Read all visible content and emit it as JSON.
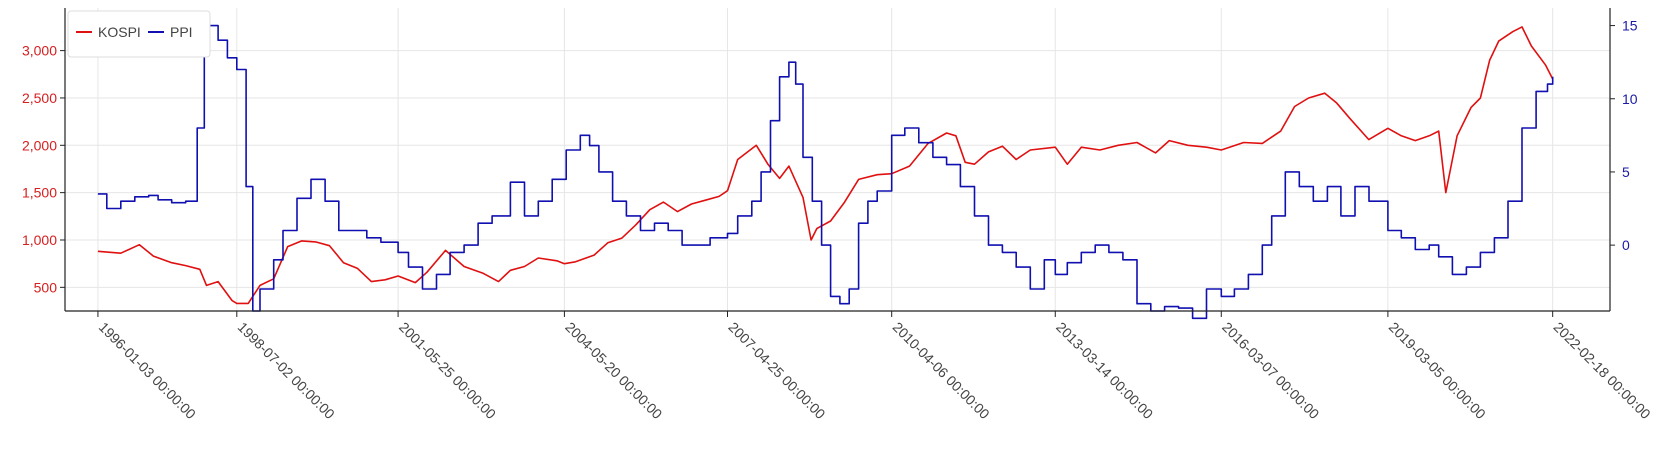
{
  "chart_data": {
    "type": "line",
    "title": "",
    "legend": {
      "placement": "top-left",
      "entries": [
        {
          "name": "KOSPI",
          "color": "#e01010"
        },
        {
          "name": "PPI",
          "color": "#1010b0"
        }
      ]
    },
    "grid": true,
    "x_axis": {
      "type": "date",
      "range": [
        "1995-06-01",
        "2023-03-01"
      ],
      "ticks": [
        {
          "date": "1996-01-03",
          "label": "1996-01-03 00:00:00"
        },
        {
          "date": "1998-07-02",
          "label": "1998-07-02 00:00:00"
        },
        {
          "date": "2001-05-25",
          "label": "2001-05-25 00:00:00"
        },
        {
          "date": "2004-05-20",
          "label": "2004-05-20 00:00:00"
        },
        {
          "date": "2007-04-25",
          "label": "2007-04-25 00:00:00"
        },
        {
          "date": "2010-04-06",
          "label": "2010-04-06 00:00:00"
        },
        {
          "date": "2013-03-14",
          "label": "2013-03-14 00:00:00"
        },
        {
          "date": "2016-03-07",
          "label": "2016-03-07 00:00:00"
        },
        {
          "date": "2019-03-05",
          "label": "2019-03-05 00:00:00"
        },
        {
          "date": "2022-02-18",
          "label": "2022-02-18 00:00:00"
        }
      ]
    },
    "y_left": {
      "color": "#d62020",
      "range": [
        250,
        3450
      ],
      "ticks": [
        {
          "value": 500,
          "label": "500"
        },
        {
          "value": 1000,
          "label": "1,000"
        },
        {
          "value": 1500,
          "label": "1,500"
        },
        {
          "value": 2000,
          "label": "2,000"
        },
        {
          "value": 2500,
          "label": "2,500"
        },
        {
          "value": 3000,
          "label": "3,000"
        }
      ]
    },
    "y_right": {
      "color": "#1a1aa6",
      "range": [
        -4.5,
        16.2
      ],
      "ticks": [
        {
          "value": 0,
          "label": "0"
        },
        {
          "value": 5,
          "label": "5"
        },
        {
          "value": 10,
          "label": "10"
        },
        {
          "value": 15,
          "label": "15"
        }
      ]
    },
    "series": [
      {
        "name": "KOSPI",
        "axis": "left",
        "color": "#e01010",
        "x": [
          "1996-01-03",
          "1996-06-01",
          "1996-10-01",
          "1997-01-01",
          "1997-05-01",
          "1997-08-01",
          "1997-11-01",
          "1997-12-15",
          "1998-03-01",
          "1998-06-01",
          "1998-07-02",
          "1998-09-15",
          "1998-12-01",
          "1999-03-01",
          "1999-06-01",
          "1999-09-01",
          "1999-12-01",
          "2000-03-01",
          "2000-06-01",
          "2000-09-01",
          "2000-12-01",
          "2001-03-01",
          "2001-05-25",
          "2001-09-15",
          "2001-12-01",
          "2002-04-01",
          "2002-08-01",
          "2002-12-01",
          "2003-03-15",
          "2003-06-01",
          "2003-09-01",
          "2003-12-01",
          "2004-04-01",
          "2004-05-20",
          "2004-08-01",
          "2004-12-01",
          "2005-03-01",
          "2005-06-01",
          "2005-09-01",
          "2005-12-01",
          "2006-03-01",
          "2006-06-01",
          "2006-09-01",
          "2006-12-01",
          "2007-03-01",
          "2007-04-25",
          "2007-07-01",
          "2007-10-31",
          "2008-01-15",
          "2008-04-01",
          "2008-06-01",
          "2008-09-01",
          "2008-10-24",
          "2008-12-01",
          "2009-03-01",
          "2009-06-01",
          "2009-09-01",
          "2010-01-01",
          "2010-04-06",
          "2010-08-01",
          "2010-12-01",
          "2011-04-01",
          "2011-06-01",
          "2011-08-01",
          "2011-10-01",
          "2012-01-01",
          "2012-04-01",
          "2012-07-01",
          "2012-10-01",
          "2013-03-14",
          "2013-06-01",
          "2013-09-01",
          "2014-01-01",
          "2014-05-01",
          "2014-09-01",
          "2015-01-01",
          "2015-04-01",
          "2015-08-01",
          "2015-12-01",
          "2016-03-07",
          "2016-08-01",
          "2016-12-01",
          "2017-04-01",
          "2017-07-01",
          "2017-10-01",
          "2018-01-15",
          "2018-04-01",
          "2018-07-01",
          "2018-10-31",
          "2019-03-05",
          "2019-06-01",
          "2019-09-01",
          "2019-12-01",
          "2020-02-01",
          "2020-03-19",
          "2020-06-01",
          "2020-09-01",
          "2020-11-01",
          "2021-01-01",
          "2021-03-01",
          "2021-06-01",
          "2021-08-01",
          "2021-10-01",
          "2022-01-01",
          "2022-02-18"
        ],
        "values": [
          880,
          860,
          950,
          830,
          760,
          730,
          690,
          520,
          560,
          360,
          330,
          330,
          520,
          590,
          930,
          990,
          980,
          940,
          760,
          700,
          560,
          580,
          620,
          550,
          660,
          890,
          720,
          650,
          560,
          680,
          720,
          810,
          780,
          750,
          770,
          840,
          970,
          1020,
          1160,
          1320,
          1400,
          1300,
          1380,
          1420,
          1460,
          1520,
          1850,
          2000,
          1800,
          1650,
          1780,
          1450,
          1000,
          1120,
          1200,
          1400,
          1640,
          1690,
          1700,
          1780,
          2020,
          2130,
          2100,
          1820,
          1800,
          1930,
          1990,
          1850,
          1950,
          1980,
          1800,
          1980,
          1950,
          2000,
          2030,
          1920,
          2050,
          2000,
          1980,
          1950,
          2030,
          2020,
          2150,
          2410,
          2500,
          2550,
          2450,
          2280,
          2060,
          2180,
          2100,
          2050,
          2100,
          2150,
          1500,
          2100,
          2400,
          2500,
          2900,
          3100,
          3200,
          3250,
          3050,
          2850,
          2700
        ]
      },
      {
        "name": "PPI",
        "axis": "right",
        "color": "#1010b0",
        "x": [
          "1996-01-03",
          "1996-03-01",
          "1996-06-01",
          "1996-09-01",
          "1996-12-01",
          "1997-02-01",
          "1997-05-01",
          "1997-08-01",
          "1997-10-15",
          "1997-12-01",
          "1998-01-01",
          "1998-03-01",
          "1998-05-01",
          "1998-07-02",
          "1998-09-01",
          "1998-10-15",
          "1998-12-01",
          "1999-03-01",
          "1999-05-01",
          "1999-08-01",
          "1999-11-01",
          "2000-02-01",
          "2000-05-01",
          "2000-08-01",
          "2000-11-01",
          "2001-02-01",
          "2001-05-25",
          "2001-08-01",
          "2001-11-01",
          "2002-02-01",
          "2002-05-01",
          "2002-08-01",
          "2002-11-01",
          "2003-02-01",
          "2003-06-01",
          "2003-09-01",
          "2003-12-01",
          "2004-03-01",
          "2004-06-01",
          "2004-09-01",
          "2004-11-01",
          "2005-01-01",
          "2005-04-01",
          "2005-07-01",
          "2005-10-01",
          "2006-01-01",
          "2006-04-01",
          "2006-07-01",
          "2006-10-01",
          "2007-01-01",
          "2007-04-25",
          "2007-07-01",
          "2007-10-01",
          "2007-12-01",
          "2008-02-01",
          "2008-04-01",
          "2008-06-01",
          "2008-07-15",
          "2008-09-01",
          "2008-11-01",
          "2009-01-01",
          "2009-03-01",
          "2009-05-01",
          "2009-07-01",
          "2009-09-01",
          "2009-11-01",
          "2010-01-01",
          "2010-04-06",
          "2010-07-01",
          "2010-10-01",
          "2011-01-01",
          "2011-04-01",
          "2011-07-01",
          "2011-10-01",
          "2012-01-01",
          "2012-04-01",
          "2012-07-01",
          "2012-10-01",
          "2013-01-01",
          "2013-03-14",
          "2013-06-01",
          "2013-09-01",
          "2013-12-01",
          "2014-03-01",
          "2014-06-01",
          "2014-09-01",
          "2014-12-01",
          "2015-03-01",
          "2015-06-01",
          "2015-09-01",
          "2015-12-01",
          "2016-03-07",
          "2016-06-01",
          "2016-09-01",
          "2016-12-01",
          "2017-02-01",
          "2017-05-01",
          "2017-08-01",
          "2017-11-01",
          "2018-02-01",
          "2018-05-01",
          "2018-08-01",
          "2018-11-01",
          "2019-03-05",
          "2019-06-01",
          "2019-09-01",
          "2019-12-01",
          "2020-02-01",
          "2020-05-01",
          "2020-08-01",
          "2020-11-01",
          "2021-02-01",
          "2021-05-01",
          "2021-08-01",
          "2021-11-01",
          "2022-01-15",
          "2022-02-18"
        ],
        "values": [
          3.5,
          2.5,
          3,
          3.3,
          3.4,
          3.1,
          2.9,
          3,
          8,
          15.3,
          15,
          14,
          12.8,
          12,
          4,
          -4.5,
          -3,
          -1,
          1,
          3.2,
          4.5,
          3,
          1,
          1,
          0.5,
          0.2,
          -0.5,
          -1.5,
          -3,
          -2,
          -0.5,
          0,
          1.5,
          2,
          4.3,
          2,
          3,
          4.5,
          6.5,
          7.5,
          6.8,
          5,
          3,
          2,
          1,
          1.5,
          1,
          0,
          0,
          0.5,
          0.8,
          2,
          3,
          5,
          8.5,
          11.5,
          12.5,
          11,
          6,
          3,
          0,
          -3.5,
          -4,
          -3,
          1.5,
          3,
          3.7,
          7.5,
          8,
          7,
          6,
          5.5,
          4,
          2,
          0,
          -0.5,
          -1.5,
          -3,
          -1,
          -2,
          -1.2,
          -0.5,
          0,
          -0.5,
          -1,
          -4,
          -4.5,
          -4.2,
          -4.3,
          -5,
          -3,
          -3.5,
          -3,
          -2,
          0,
          2,
          5,
          4,
          3,
          4,
          2,
          4,
          3,
          1,
          0.5,
          -0.3,
          0,
          -0.8,
          -2,
          -1.5,
          -0.5,
          0.5,
          3,
          8,
          10.5,
          11,
          11.5
        ]
      }
    ]
  }
}
